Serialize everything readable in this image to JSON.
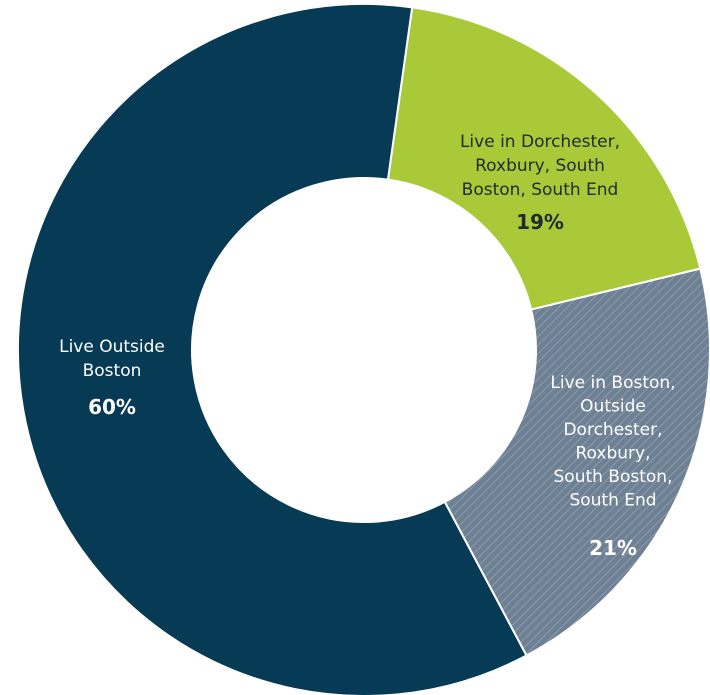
{
  "chart_data": {
    "type": "pie",
    "donut": true,
    "legend": "none",
    "slices": [
      {
        "label_lines": [
          "Live in Dorchester,",
          "Roxbury, South",
          "Boston, South End"
        ],
        "value_label": "19%",
        "value": 19,
        "color": "#a9c938",
        "text_color": "#1e2b2f",
        "pattern": "none"
      },
      {
        "label_lines": [
          "Live in Boston,",
          "Outside",
          "Dorchester,",
          "Roxbury,",
          "South Boston,",
          "South End"
        ],
        "value_label": "21%",
        "value": 21,
        "color": "#6e8194",
        "text_color": "#ffffff",
        "pattern": "diagonal-hatch"
      },
      {
        "label_lines": [
          "Live Outside",
          "Boston"
        ],
        "value_label": "60%",
        "value": 60,
        "color": "#073a55",
        "text_color": "#ffffff",
        "pattern": "none"
      }
    ]
  }
}
